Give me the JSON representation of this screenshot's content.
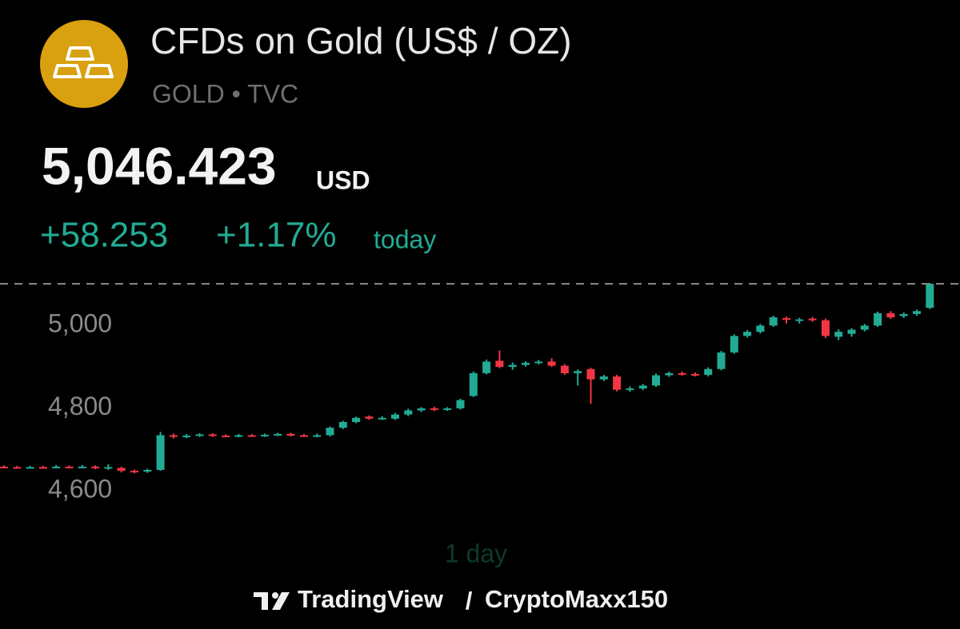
{
  "header": {
    "title": "CFDs on Gold (US$ / OZ)",
    "subtitle": "GOLD • TVC",
    "price": "5,046.423",
    "currency": "USD",
    "change": "+58.253",
    "change_percent": "+1.17%",
    "period": "today"
  },
  "footer": {
    "interval": "1 day",
    "brand": "TradingView",
    "separator": "/",
    "author": "CryptoMaxx150"
  },
  "chart_data": {
    "type": "candlestick",
    "up_color": "#22ab94",
    "down_color": "#f23645",
    "ylim": [
      4540,
      5110
    ],
    "yticks": [
      {
        "value": 4600,
        "label": "4,600"
      },
      {
        "value": 4800,
        "label": "4,800"
      },
      {
        "value": 5000,
        "label": "5,000"
      }
    ],
    "open": [
      4604,
      4603,
      4602,
      4603,
      4602,
      4604,
      4603,
      4604,
      4602,
      4601,
      4594,
      4592,
      4596,
      4680,
      4676,
      4679,
      4682,
      4679,
      4678,
      4680,
      4679,
      4681,
      4683,
      4680,
      4679,
      4680,
      4698,
      4712,
      4725,
      4720,
      4720,
      4730,
      4740,
      4745,
      4742,
      4745,
      4775,
      4830,
      4860,
      4845,
      4850,
      4855,
      4858,
      4848,
      4830,
      4840,
      4815,
      4822,
      4790,
      4793,
      4800,
      4825,
      4830,
      4828,
      4826,
      4840,
      4880,
      4920,
      4930,
      4945,
      4963,
      4958,
      4962,
      4958,
      4918,
      4925,
      4935,
      4945,
      4975,
      4968,
      4973,
      4988
    ],
    "high": [
      4607,
      4606,
      4606,
      4606,
      4608,
      4607,
      4608,
      4607,
      4610,
      4604,
      4597,
      4599,
      4688,
      4684,
      4683,
      4685,
      4685,
      4682,
      4683,
      4683,
      4684,
      4686,
      4686,
      4683,
      4684,
      4701,
      4715,
      4725,
      4728,
      4726,
      4734,
      4744,
      4748,
      4749,
      4748,
      4768,
      4834,
      4863,
      4885,
      4856,
      4859,
      4862,
      4866,
      4852,
      4839,
      4843,
      4826,
      4826,
      4798,
      4804,
      4829,
      4834,
      4834,
      4832,
      4844,
      4884,
      4924,
      4934,
      4949,
      4969,
      4967,
      4964,
      4966,
      4962,
      4936,
      4939,
      4949,
      4979,
      4980,
      4977,
      4984,
      5048
    ],
    "low": [
      4600,
      4599,
      4599,
      4599,
      4600,
      4600,
      4600,
      4598,
      4596,
      4590,
      4588,
      4589,
      4594,
      4672,
      4673,
      4676,
      4676,
      4675,
      4675,
      4676,
      4676,
      4678,
      4677,
      4676,
      4675,
      4677,
      4695,
      4709,
      4717,
      4717,
      4717,
      4726,
      4736,
      4738,
      4739,
      4742,
      4772,
      4827,
      4842,
      4838,
      4846,
      4851,
      4845,
      4826,
      4800,
      4756,
      4811,
      4786,
      4785,
      4789,
      4797,
      4821,
      4824,
      4822,
      4822,
      4837,
      4877,
      4916,
      4926,
      4942,
      4950,
      4950,
      4954,
      4915,
      4910,
      4918,
      4931,
      4942,
      4961,
      4963,
      4969,
      4985
    ],
    "close": [
      4603,
      4602,
      4603,
      4602,
      4604,
      4603,
      4604,
      4602,
      4603,
      4594,
      4592,
      4596,
      4680,
      4676,
      4679,
      4682,
      4679,
      4678,
      4680,
      4679,
      4681,
      4683,
      4680,
      4679,
      4680,
      4698,
      4712,
      4722,
      4720,
      4722,
      4730,
      4740,
      4745,
      4742,
      4745,
      4765,
      4830,
      4858,
      4845,
      4850,
      4855,
      4858,
      4848,
      4830,
      4835,
      4815,
      4822,
      4790,
      4793,
      4800,
      4825,
      4830,
      4828,
      4826,
      4840,
      4880,
      4920,
      4930,
      4945,
      4965,
      4960,
      4960,
      4958,
      4920,
      4930,
      4935,
      4945,
      4975,
      4965,
      4973,
      4980,
      5046
    ]
  }
}
